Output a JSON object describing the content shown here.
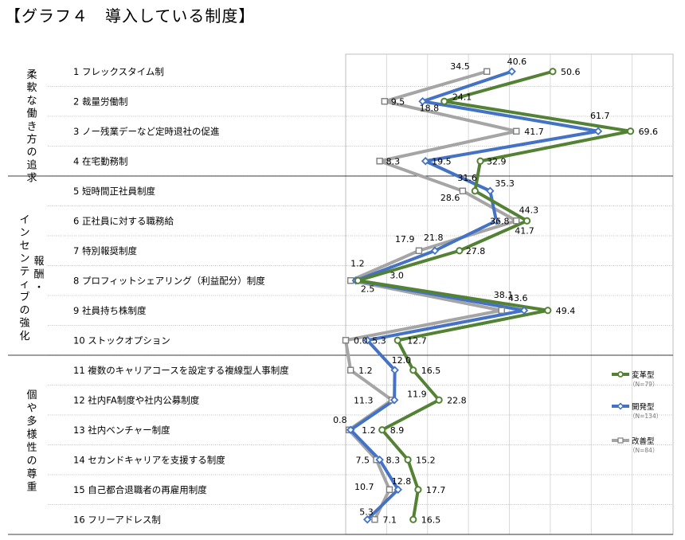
{
  "title": "【グラフ４　導入している制度】",
  "chart_data": {
    "type": "line",
    "orientation": "horizontal",
    "categories": [
      "1 フレックスタイム制",
      "2 裁量労働制",
      "3 ノー残業デーなど定時退社の促進",
      "4 在宅勤務制",
      "5 短時間正社員制度",
      "6 正社員に対する職務給",
      "7 特別報奨制度",
      "8 プロフィットシェアリング（利益配分）制度",
      "9 社員持ち株制度",
      "10 ストックオプション",
      "11 複数のキャリアコースを設定する複線型人事制度",
      "12 社内FA制度や社内公募制度",
      "13 社内ベンチャー制度",
      "14 セカンドキャリアを支援する制度",
      "15 自己都合退職者の再雇用制度",
      "16 フリーアドレス制"
    ],
    "groups": [
      {
        "label": "柔軟な働き方の追求",
        "chars": [
          "柔",
          "軟",
          "な",
          "働",
          "き",
          "方",
          "の",
          "追",
          "求"
        ]
      },
      {
        "label": "インセンティブの強化",
        "chars": [
          "イ",
          "ン",
          "セ",
          "ン",
          "テ",
          "ィ",
          "ブ",
          "の",
          "強",
          "化"
        ]
      },
      {
        "label": "報酬・",
        "chars": [
          "報",
          "酬",
          "・"
        ]
      },
      {
        "label": "個や多様性の尊重",
        "chars": [
          "個",
          "や",
          "多",
          "様",
          "性",
          "の",
          "尊",
          "重"
        ]
      }
    ],
    "series": [
      {
        "name": "変革型",
        "sample": "（N=79）",
        "color": "#548235",
        "marker": "circle",
        "values": [
          50.6,
          24.1,
          69.6,
          32.9,
          31.6,
          44.3,
          27.8,
          3.0,
          49.4,
          12.7,
          16.5,
          22.8,
          8.9,
          15.2,
          17.7,
          16.5
        ]
      },
      {
        "name": "開発型",
        "sample": "（N=134）",
        "color": "#4472C4",
        "marker": "diamond",
        "values": [
          40.6,
          18.8,
          61.7,
          19.5,
          35.3,
          36.8,
          21.8,
          2.5,
          43.6,
          5.3,
          12.0,
          11.9,
          1.2,
          8.3,
          12.8,
          5.3
        ]
      },
      {
        "name": "改善型",
        "sample": "（N=84）",
        "color": "#A5A5A5",
        "marker": "square",
        "values": [
          34.5,
          9.5,
          41.7,
          8.3,
          28.6,
          41.7,
          17.9,
          1.2,
          38.1,
          0.0,
          1.2,
          11.3,
          0.8,
          7.5,
          10.7,
          7.1
        ]
      }
    ],
    "data_labels": [
      [
        "50.6",
        "24.1",
        "69.6",
        "32.9",
        "31.6",
        "44.3",
        "27.8",
        "3.0",
        "49.4",
        "12.7",
        "16.5",
        "22.8",
        "8.9",
        "15.2",
        "17.7",
        "16.5"
      ],
      [
        "40.6",
        "18.8",
        "61.7",
        "19.5",
        "35.3",
        "36.8",
        "21.8",
        "2.5",
        "43.6",
        "5.3",
        "12.0",
        "11.9",
        "1.2",
        "8.3",
        "12.8",
        "5.3"
      ],
      [
        "34.5",
        "9.5",
        "41.7",
        "8.3",
        "28.6",
        "41.7",
        "17.9",
        "1.2",
        "38.1",
        "0.0",
        "1.2",
        "11.3",
        "0.8",
        "7.5",
        "10.7",
        "7.1"
      ]
    ],
    "xlim": [
      0,
      80
    ],
    "grid": true,
    "legend_position": "right"
  }
}
